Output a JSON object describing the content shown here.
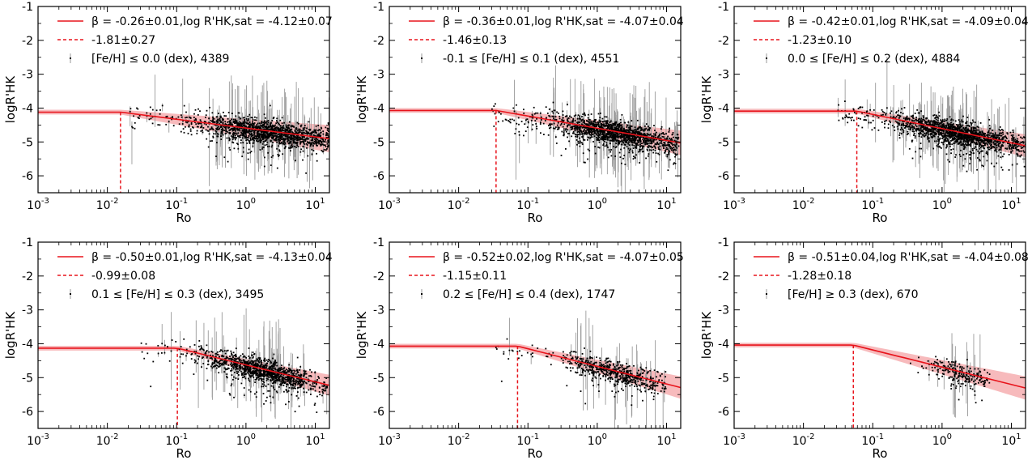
{
  "chart_data": [
    {
      "type": "scatter",
      "panel": "top-left",
      "xlabel": "Ro",
      "ylabel": "logR'HK",
      "xscale": "log",
      "xlim": [
        0.001,
        16
      ],
      "ylim": [
        -6.5,
        -1
      ],
      "xtick_labels": [
        "10",
        "10",
        "10",
        "10",
        "10"
      ],
      "xtick_exponents": [
        "-3",
        "-2",
        "-1",
        "0",
        "1"
      ],
      "ytick_labels": [
        "-1",
        "-2",
        "-3",
        "-4",
        "-5",
        "-6"
      ],
      "fit": {
        "log_rhk_sat": -4.12,
        "beta": -0.26,
        "ro_break_log10": -1.81
      },
      "legend": {
        "fit_label": "β = -0.26±0.01,log R'HK,sat = -4.12±0.07",
        "break_label": "-1.81±0.27",
        "data_label": "[Fe/H] ≤ 0.0 (dex), 4389"
      },
      "cloud": {
        "ro_min": 0.02,
        "ro_peak": 2.0,
        "ro_max": 16,
        "n_points": 4389,
        "spread": 0.18,
        "scale_log10": 0.5
      }
    },
    {
      "type": "scatter",
      "panel": "top-middle",
      "xlabel": "Ro",
      "ylabel": "logR'HK",
      "xscale": "log",
      "xlim": [
        0.001,
        16
      ],
      "ylim": [
        -6.5,
        -1
      ],
      "xtick_labels": [
        "10",
        "10",
        "10",
        "10",
        "10"
      ],
      "xtick_exponents": [
        "-3",
        "-2",
        "-1",
        "0",
        "1"
      ],
      "ytick_labels": [
        "-1",
        "-2",
        "-3",
        "-4",
        "-5",
        "-6"
      ],
      "fit": {
        "log_rhk_sat": -4.07,
        "beta": -0.36,
        "ro_break_log10": -1.46
      },
      "legend": {
        "fit_label": "β = -0.36±0.01,log R'HK,sat = -4.07±0.04",
        "break_label": "-1.46±0.13",
        "data_label": "-0.1 ≤ [Fe/H] ≤ 0.1 (dex), 4551"
      },
      "cloud": {
        "ro_min": 0.03,
        "ro_peak": 2.0,
        "ro_max": 15,
        "n_points": 4551,
        "spread": 0.18,
        "scale_log10": 0.45
      }
    },
    {
      "type": "scatter",
      "panel": "top-right",
      "xlabel": "Ro",
      "ylabel": "logR'HK",
      "xscale": "log",
      "xlim": [
        0.001,
        16
      ],
      "ylim": [
        -6.5,
        -1
      ],
      "xtick_labels": [
        "10",
        "10",
        "10",
        "10",
        "10"
      ],
      "xtick_exponents": [
        "-3",
        "-2",
        "-1",
        "0",
        "1"
      ],
      "ytick_labels": [
        "-1",
        "-2",
        "-3",
        "-4",
        "-5",
        "-6"
      ],
      "fit": {
        "log_rhk_sat": -4.09,
        "beta": -0.42,
        "ro_break_log10": -1.23
      },
      "legend": {
        "fit_label": "β = -0.42±0.01,log R'HK,sat = -4.09±0.04",
        "break_label": "-1.23±0.10",
        "data_label": "0.0 ≤ [Fe/H] ≤ 0.2 (dex), 4884"
      },
      "cloud": {
        "ro_min": 0.03,
        "ro_peak": 1.8,
        "ro_max": 16,
        "n_points": 4884,
        "spread": 0.18,
        "scale_log10": 0.45
      }
    },
    {
      "type": "scatter",
      "panel": "bottom-left",
      "xlabel": "Ro",
      "ylabel": "logR'HK",
      "xscale": "log",
      "xlim": [
        0.001,
        16
      ],
      "ylim": [
        -6.5,
        -1
      ],
      "xtick_labels": [
        "10",
        "10",
        "10",
        "10",
        "10"
      ],
      "xtick_exponents": [
        "-3",
        "-2",
        "-1",
        "0",
        "1"
      ],
      "ytick_labels": [
        "-1",
        "-2",
        "-3",
        "-4",
        "-5",
        "-6"
      ],
      "fit": {
        "log_rhk_sat": -4.13,
        "beta": -0.5,
        "ro_break_log10": -0.99
      },
      "legend": {
        "fit_label": "β = -0.50±0.01,log R'HK,sat = -4.13±0.04",
        "break_label": "-0.99±0.08",
        "data_label": "0.1 ≤ [Fe/H] ≤ 0.3 (dex), 3495"
      },
      "cloud": {
        "ro_min": 0.03,
        "ro_peak": 1.8,
        "ro_max": 15,
        "n_points": 3495,
        "spread": 0.17,
        "scale_log10": 0.45
      }
    },
    {
      "type": "scatter",
      "panel": "bottom-middle",
      "xlabel": "Ro",
      "ylabel": "logR'HK",
      "xscale": "log",
      "xlim": [
        0.001,
        16
      ],
      "ylim": [
        -6.5,
        -1
      ],
      "xtick_labels": [
        "10",
        "10",
        "10",
        "10",
        "10"
      ],
      "xtick_exponents": [
        "-3",
        "-2",
        "-1",
        "0",
        "1"
      ],
      "ytick_labels": [
        "-1",
        "-2",
        "-3",
        "-4",
        "-5",
        "-6"
      ],
      "fit": {
        "log_rhk_sat": -4.07,
        "beta": -0.52,
        "ro_break_log10": -1.15
      },
      "legend": {
        "fit_label": "β = -0.52±0.02,log R'HK,sat = -4.07±0.05",
        "break_label": "-1.15±0.11",
        "data_label": "0.2 ≤ [Fe/H] ≤ 0.4 (dex), 1747"
      },
      "cloud": {
        "ro_min": 0.03,
        "ro_peak": 1.8,
        "ro_max": 10,
        "n_points": 1747,
        "spread": 0.17,
        "scale_log10": 0.4
      }
    },
    {
      "type": "scatter",
      "panel": "bottom-right",
      "xlabel": "Ro",
      "ylabel": "logR'HK",
      "xscale": "log",
      "xlim": [
        0.001,
        16
      ],
      "ylim": [
        -6.5,
        -1
      ],
      "xtick_labels": [
        "10",
        "10",
        "10",
        "10",
        "10"
      ],
      "xtick_exponents": [
        "-3",
        "-2",
        "-1",
        "0",
        "1"
      ],
      "ytick_labels": [
        "-1",
        "-2",
        "-3",
        "-4",
        "-5",
        "-6"
      ],
      "fit": {
        "log_rhk_sat": -4.04,
        "beta": -0.51,
        "ro_break_log10": -1.28
      },
      "legend": {
        "fit_label": "β = -0.51±0.04,log R'HK,sat = -4.04±0.08",
        "break_label": "-1.28±0.18",
        "data_label": "[Fe/H] ≥ 0.3 (dex), 670"
      },
      "cloud": {
        "ro_min": 0.3,
        "ro_peak": 1.8,
        "ro_max": 5,
        "n_points": 670,
        "spread": 0.16,
        "scale_log10": 0.25
      }
    }
  ],
  "colors": {
    "fit_line": "#e8131b",
    "fit_band": "#f4a3a6",
    "points": "#000000",
    "errorbars": "#9a9a9a",
    "axes": "#000000"
  }
}
